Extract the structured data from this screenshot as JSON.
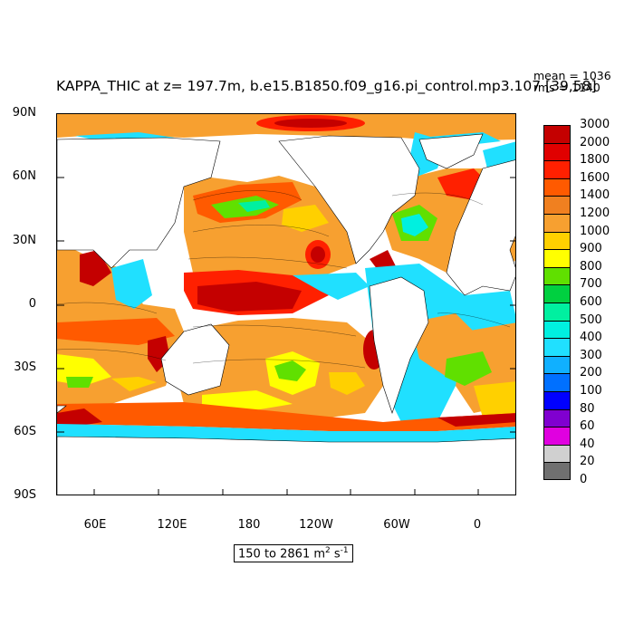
{
  "title": "KAPPA_THIC at z= 197.7m, b.e15.B1850.f09_g16.pi_control.mp3.107 [39,58]",
  "stats": {
    "mean": "mean = 1036",
    "rms": "rms = 1140"
  },
  "y_axis_labels": [
    "90N",
    "60N",
    "30N",
    "0",
    "30S",
    "60S",
    "90S"
  ],
  "x_axis_labels": [
    "60E",
    "120E",
    "180",
    "120W",
    "60W",
    "0"
  ],
  "colorbar": {
    "levels": [
      "3000",
      "2000",
      "1800",
      "1600",
      "1400",
      "1200",
      "1000",
      "900",
      "800",
      "700",
      "600",
      "500",
      "400",
      "300",
      "200",
      "100",
      "80",
      "60",
      "40",
      "20",
      "0"
    ],
    "colors": [
      "#c40000",
      "#e00000",
      "#ff2000",
      "#ff5a00",
      "#f08020",
      "#f7a030",
      "#ffd000",
      "#ffff00",
      "#60e000",
      "#00d040",
      "#00f0a0",
      "#00f0e0",
      "#20e0ff",
      "#10b0ff",
      "#0070ff",
      "#0000ff",
      "#8000d0",
      "#e000e0",
      "#d0d0d0",
      "#707070"
    ]
  },
  "units": {
    "range": "150 to 2861 m",
    "exp1": "2",
    "mid": " s",
    "exp2": "-1"
  },
  "map": {
    "field": "KAPPA_THIC",
    "projection": "cylindrical equidistant, centered on 180",
    "lat_range": [
      -90,
      90
    ],
    "lon_range": [
      30,
      390
    ],
    "land_color": "#ffffff"
  }
}
